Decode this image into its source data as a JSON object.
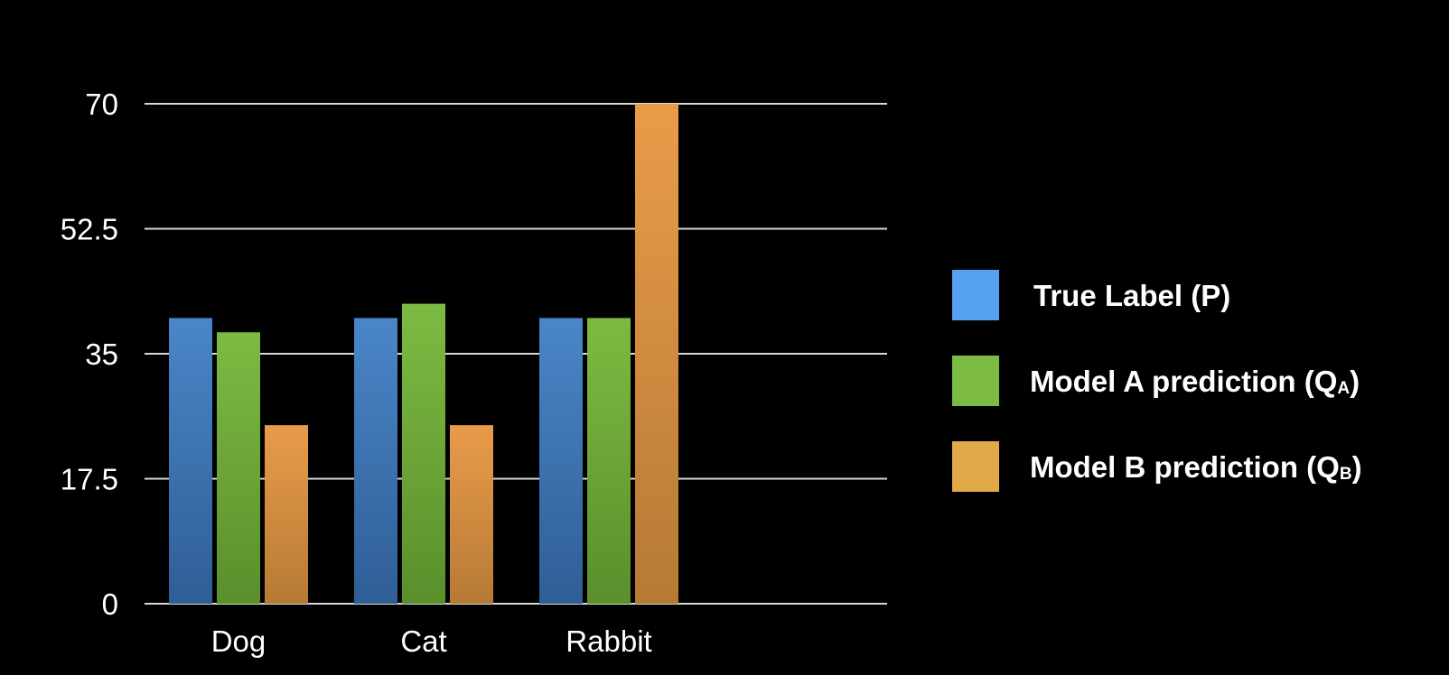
{
  "chart_data": {
    "type": "bar",
    "categories": [
      "Dog",
      "Cat",
      "Rabbit"
    ],
    "series": [
      {
        "name": "True Label (P)",
        "values": [
          40,
          40,
          40
        ],
        "color_top": "#4a86c8",
        "color_bottom": "#2f5e96"
      },
      {
        "name": "Model A prediction (QA)",
        "values": [
          38,
          42,
          40
        ],
        "color_top": "#7cbb42",
        "color_bottom": "#5a8f2c"
      },
      {
        "name": "Model B prediction (QB)",
        "values": [
          25,
          25,
          70
        ],
        "color_top": "#e99c4a",
        "color_bottom": "#b67a35"
      }
    ],
    "ylim": [
      0,
      70
    ],
    "yticks": [
      "0",
      "17.5",
      "35",
      "52.5",
      "70"
    ],
    "grid": true,
    "legend_position": "right"
  },
  "legend": {
    "items": [
      {
        "main": "True Label (P)",
        "sub": "",
        "tail": "",
        "color": "#55a2f2"
      },
      {
        "main": "Model A prediction (Q",
        "sub": "A",
        "tail": ")",
        "color": "#7cbb42"
      },
      {
        "main": "Model B prediction (Q",
        "sub": "B",
        "tail": ")",
        "color": "#e2a948"
      }
    ]
  },
  "colors": {
    "background": "#000000",
    "grid": "#d8d8d8",
    "text": "#ffffff"
  }
}
